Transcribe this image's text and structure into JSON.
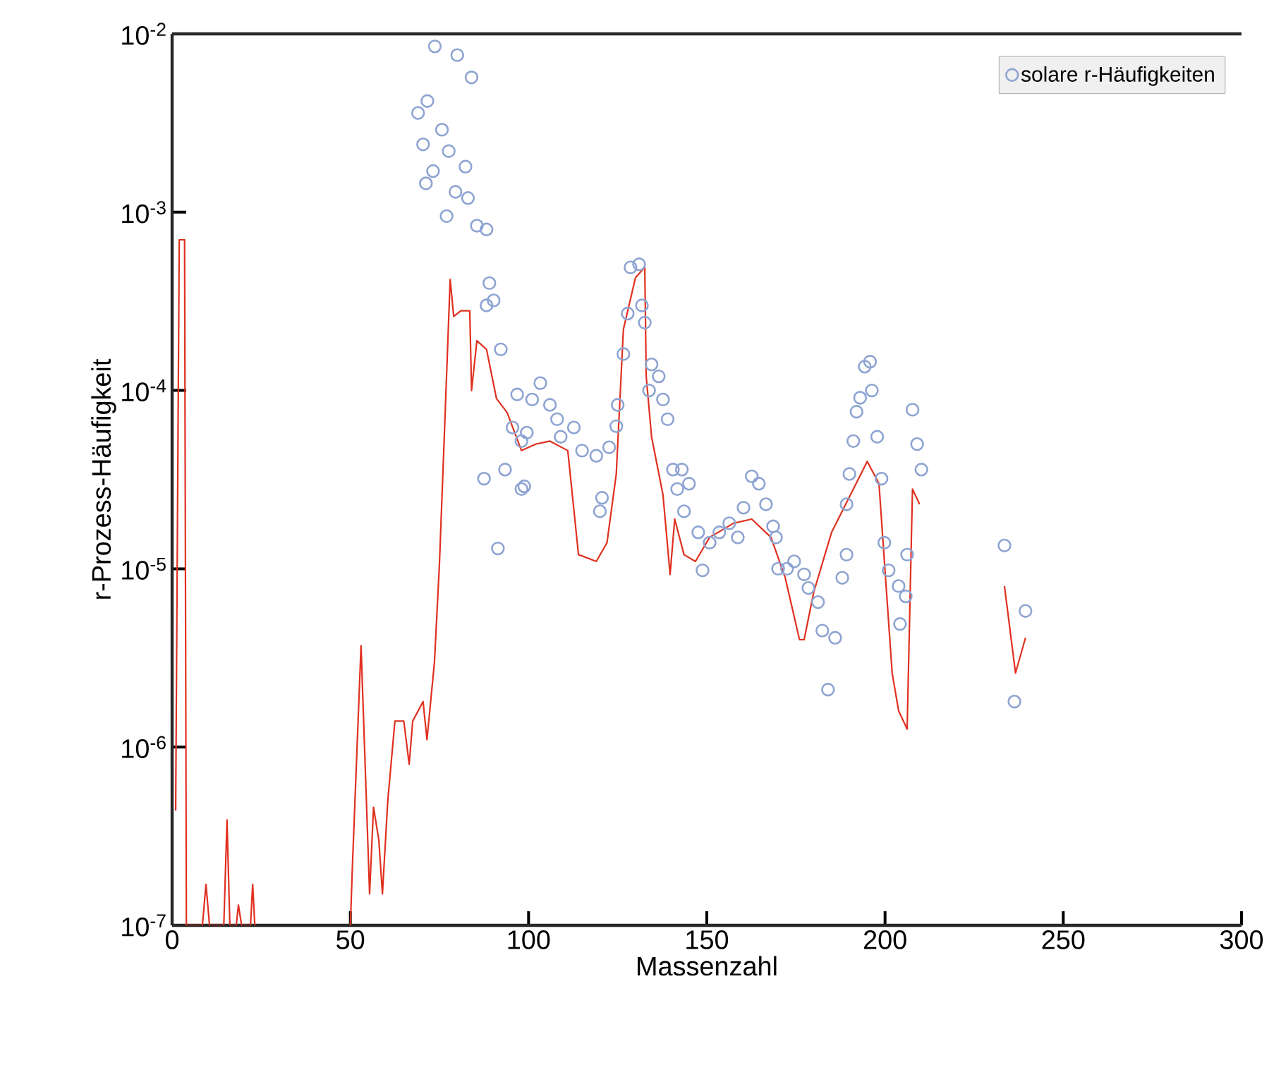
{
  "chart_data": {
    "type": "scatter",
    "xlabel": "Massenzahl",
    "ylabel": "r-Prozess-Häufigkeit",
    "xlim": [
      0,
      300
    ],
    "ylim": [
      1e-07,
      0.01
    ],
    "log": "y",
    "legend": "top right",
    "xticks": [
      0,
      50,
      100,
      150,
      200,
      250,
      300
    ],
    "yticks": [
      {
        "value": 1e-07,
        "label": "10$^{-7}$"
      },
      {
        "value": 1e-06,
        "label": "10$^{-6}$"
      },
      {
        "value": 1e-05,
        "label": "10$^{-5}$"
      },
      {
        "value": 0.0001,
        "label": "10$^{-4}$"
      },
      {
        "value": 0.001,
        "label": "10$^{-3}$"
      },
      {
        "value": 0.01,
        "label": "10$^{-2}$"
      }
    ],
    "series": [
      {
        "type": "line",
        "color": "#e03020",
        "marker": "none",
        "line_style": "solid",
        "x": [
          1,
          2,
          3.5,
          4,
          8.5,
          9.5,
          10.5,
          14.5,
          15.4,
          16.2,
          18,
          18.6,
          19.5,
          22,
          22.6,
          23.2,
          35,
          50,
          50.6,
          53,
          55.4,
          56.5,
          58,
          59,
          60.5,
          62.5,
          65,
          66.5,
          67.5,
          70.4,
          71.5,
          73.6,
          75,
          76.5,
          78,
          79,
          81,
          83.5,
          84,
          85.5,
          88.2,
          91,
          94,
          98,
          102,
          106,
          111,
          114,
          119,
          122,
          124.6,
          126.6,
          130,
          132.6,
          133,
          134.5,
          137.7,
          139.7,
          141,
          143.6,
          146.8,
          150.8,
          157.5,
          162.6,
          168,
          172,
          176,
          177.3,
          180,
          185,
          190.3,
          195,
          198.3,
          202,
          203.8,
          206.2,
          207.7,
          209.7,
          220,
          233.5,
          236.6,
          239.4
        ],
        "values": [
          4.4e-07,
          0.0007,
          0.0007,
          1e-07,
          1e-07,
          1.7e-07,
          1e-07,
          1e-07,
          3.9e-07,
          1e-07,
          1e-07,
          1.3e-07,
          1e-07,
          1e-07,
          1.7e-07,
          1e-07,
          null,
          1e-07,
          2.2e-07,
          3.7e-06,
          1.5e-07,
          4.6e-07,
          3e-07,
          1.5e-07,
          5e-07,
          1.4e-06,
          1.4e-06,
          8e-07,
          1.4e-06,
          1.8e-06,
          1.1e-06,
          3e-06,
          1.07e-05,
          6.6e-05,
          0.00042,
          0.00026,
          0.00028,
          0.00028,
          0.0001,
          0.00019,
          0.00017,
          9e-05,
          7.5e-05,
          4.6e-05,
          5e-05,
          5.2e-05,
          4.6e-05,
          1.2e-05,
          1.1e-05,
          1.4e-05,
          3.4e-05,
          0.00022,
          0.00043,
          0.00049,
          0.00012,
          5.5e-05,
          2.6e-05,
          9.3e-06,
          1.9e-05,
          1.2e-05,
          1.1e-05,
          1.5e-05,
          1.8e-05,
          1.9e-05,
          1.5e-05,
          8.9e-06,
          4e-06,
          4e-06,
          7.4e-06,
          1.6e-05,
          2.6e-05,
          4e-05,
          3e-05,
          2.6e-06,
          1.6e-06,
          1.26e-06,
          2.8e-05,
          2.3e-05,
          null,
          8e-06,
          2.6e-06,
          4.1e-06
        ]
      },
      {
        "name": "solare r-Häufigkeiten",
        "color": "#8ea4d2",
        "marker": "circle",
        "x": [
          73.7,
          80,
          84,
          69,
          71.6,
          70.4,
          75.7,
          77.6,
          82.3,
          73.2,
          71.2,
          79.5,
          83,
          77,
          85.5,
          88.2,
          89,
          90.2,
          88.2,
          92.2,
          96.8,
          95.5,
          98,
          87.5,
          93.4,
          98,
          91.4,
          103.3,
          101,
          99.5,
          98.8,
          106,
          108,
          112.7,
          109,
          115,
          119,
          122.6,
          120.6,
          120,
          124.6,
          125,
          126.6,
          127.8,
          128.6,
          131,
          131.8,
          132.6,
          134.5,
          136.5,
          133.8,
          137.7,
          139,
          140.5,
          143,
          145,
          141.7,
          143.6,
          147.6,
          150.8,
          148.8,
          153.5,
          156.3,
          158.7,
          160.3,
          162.6,
          164.6,
          166.6,
          168.6,
          169.4,
          170,
          172.5,
          174.5,
          177.3,
          178.5,
          181.2,
          182.4,
          186,
          184,
          188,
          189.2,
          189.2,
          190,
          191.1,
          192,
          193,
          196.3,
          194.3,
          195.8,
          197.8,
          199,
          199.8,
          201,
          203.8,
          205.8,
          204.2,
          206.2,
          207.7,
          209,
          210.2,
          233.5,
          239.4,
          236.3
        ],
        "values": [
          0.0085,
          0.0076,
          0.0057,
          0.0036,
          0.0042,
          0.0024,
          0.0029,
          0.0022,
          0.0018,
          0.0017,
          0.00145,
          0.0013,
          0.0012,
          0.00095,
          0.00084,
          0.0008,
          0.0004,
          0.00032,
          0.0003,
          0.00017,
          9.5e-05,
          6.2e-05,
          5.2e-05,
          3.2e-05,
          3.6e-05,
          2.8e-05,
          1.3e-05,
          0.00011,
          8.9e-05,
          5.8e-05,
          2.9e-05,
          8.3e-05,
          6.9e-05,
          6.2e-05,
          5.5e-05,
          4.6e-05,
          4.3e-05,
          4.8e-05,
          2.5e-05,
          2.1e-05,
          6.3e-05,
          8.3e-05,
          0.00016,
          0.00027,
          0.00049,
          0.00051,
          0.0003,
          0.00024,
          0.00014,
          0.00012,
          0.0001,
          8.9e-05,
          6.9e-05,
          3.6e-05,
          3.6e-05,
          3e-05,
          2.8e-05,
          2.1e-05,
          1.6e-05,
          1.4e-05,
          9.8e-06,
          1.6e-05,
          1.8e-05,
          1.5e-05,
          2.2e-05,
          3.3e-05,
          3e-05,
          2.3e-05,
          1.73e-05,
          1.5e-05,
          1e-05,
          1e-05,
          1.1e-05,
          9.3e-06,
          7.8e-06,
          6.5e-06,
          4.5e-06,
          4.1e-06,
          2.1e-06,
          8.9e-06,
          1.2e-05,
          2.3e-05,
          3.4e-05,
          5.2e-05,
          7.6e-05,
          9.1e-05,
          0.0001,
          0.000136,
          0.000145,
          5.5e-05,
          3.2e-05,
          1.4e-05,
          9.8e-06,
          8e-06,
          7e-06,
          4.9e-06,
          1.2e-05,
          7.8e-05,
          5e-05,
          3.6e-05,
          1.35e-05,
          5.8e-06,
          1.8e-06
        ]
      }
    ]
  }
}
